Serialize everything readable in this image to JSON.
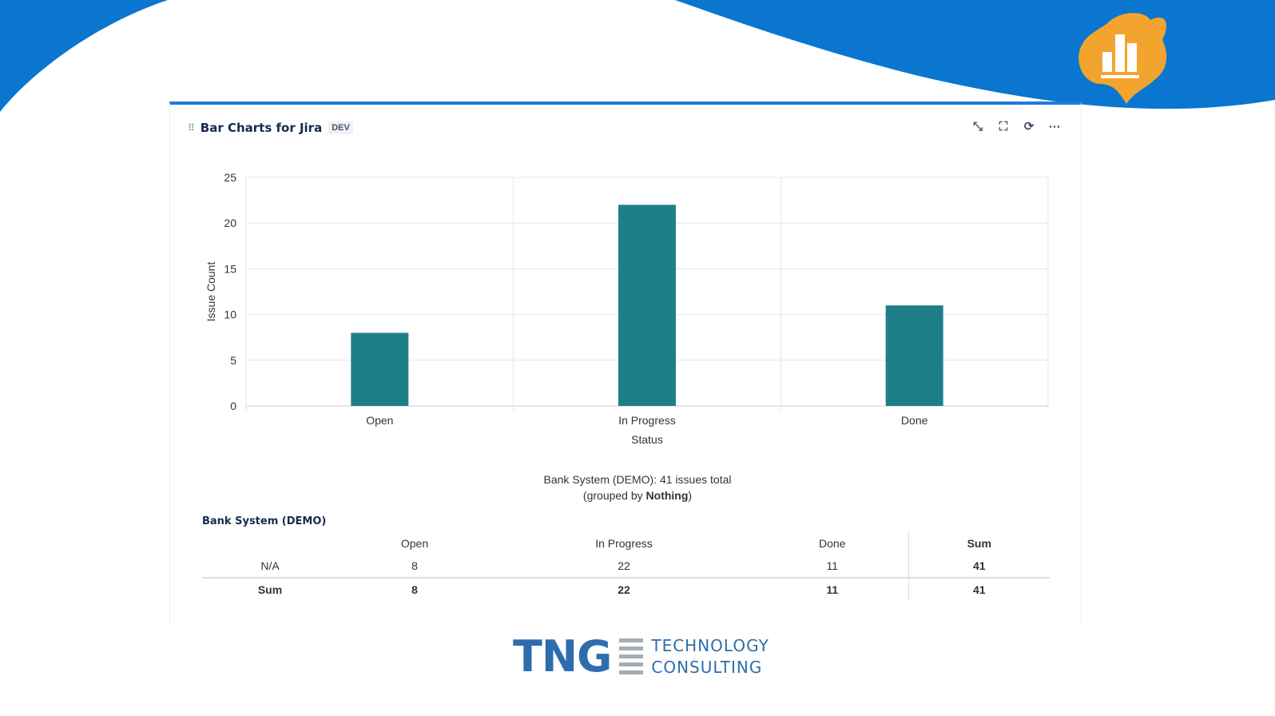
{
  "widget": {
    "title": "Bar Charts for Jira",
    "badge": "DEV",
    "icons": [
      "minimize-icon",
      "fullscreen-icon",
      "refresh-icon",
      "more-icon"
    ]
  },
  "colors": {
    "bar": "#1f7f89",
    "header_accent": "#1f7ae0",
    "background_wave": "#0a76d0"
  },
  "chart_data": {
    "type": "bar",
    "categories": [
      "Open",
      "In Progress",
      "Done"
    ],
    "values": [
      8,
      22,
      11
    ],
    "xlabel": "Status",
    "ylabel": "Issue Count",
    "ylim": [
      0,
      25
    ],
    "yticks": [
      0,
      5,
      10,
      15,
      20,
      25
    ],
    "grid": true
  },
  "summary": {
    "line1": "Bank System (DEMO): 41 issues total",
    "line2_prefix": "(grouped by ",
    "line2_bold": "Nothing",
    "line2_suffix": ")"
  },
  "table": {
    "title": "Bank System (DEMO)",
    "headers": [
      "",
      "Open",
      "In Progress",
      "Done",
      "Sum"
    ],
    "rows": [
      [
        "N/A",
        "8",
        "22",
        "11",
        "41"
      ],
      [
        "Sum",
        "8",
        "22",
        "11",
        "41"
      ]
    ]
  },
  "footer_logo": {
    "text": "TNG",
    "subtitle1": "TECHNOLOGY",
    "subtitle2": "CONSULTING"
  }
}
